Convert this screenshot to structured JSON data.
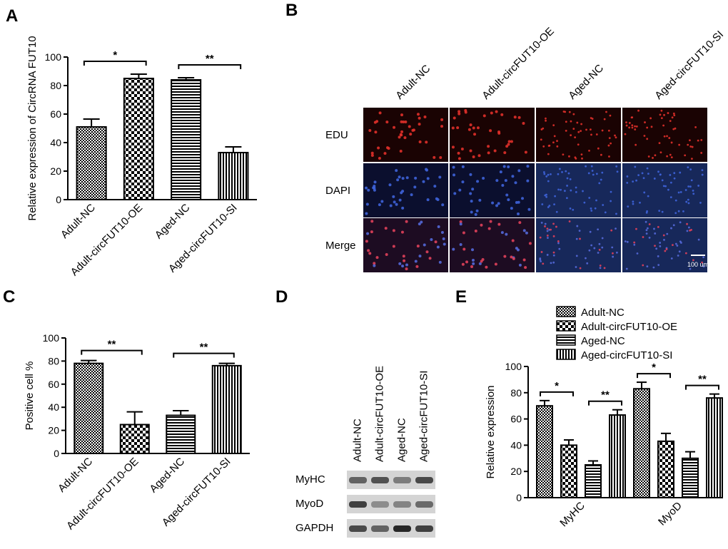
{
  "panels": {
    "a": "A",
    "b": "B",
    "c": "C",
    "d": "D",
    "e": "E"
  },
  "chart_data": [
    {
      "panel": "A",
      "type": "bar",
      "ylabel": "Relative expression of CircRNA FUT10",
      "ylim": [
        0,
        100
      ],
      "yticks": [
        "0",
        "20",
        "40",
        "60",
        "80",
        "100"
      ],
      "categories": [
        "Adult-NC",
        "Adult-circFUT10-OE",
        "Aged-NC",
        "Aged-circFUT10-SI"
      ],
      "values": [
        51,
        85,
        84,
        33
      ],
      "errors": [
        5.5,
        3,
        1.5,
        4
      ],
      "patterns": [
        "fine-check",
        "check",
        "hstripe",
        "vstripe"
      ],
      "significance": [
        {
          "from": 0,
          "to": 1,
          "label": "*"
        },
        {
          "from": 2,
          "to": 3,
          "label": "**"
        }
      ]
    },
    {
      "panel": "C",
      "type": "bar",
      "ylabel": "Positive cell %",
      "ylim": [
        0,
        100
      ],
      "yticks": [
        "0",
        "20",
        "40",
        "60",
        "80",
        "100"
      ],
      "categories": [
        "Adult-NC",
        "Adult-circFUT10-OE",
        "Aged-NC",
        "Aged-circFUT10-SI"
      ],
      "values": [
        78,
        25,
        33,
        76
      ],
      "errors": [
        2.5,
        11,
        4,
        2
      ],
      "patterns": [
        "fine-check",
        "check",
        "hstripe",
        "vstripe"
      ],
      "significance": [
        {
          "from": 0,
          "to": 1,
          "label": "**"
        },
        {
          "from": 2,
          "to": 3,
          "label": "**"
        }
      ]
    },
    {
      "panel": "E",
      "type": "bar",
      "ylabel": "Relative expression",
      "ylim": [
        0,
        100
      ],
      "yticks": [
        "0",
        "20",
        "40",
        "60",
        "80",
        "100"
      ],
      "categories": [
        "MyHC",
        "MyoD"
      ],
      "series": [
        {
          "name": "Adult-NC",
          "values": [
            70,
            83
          ],
          "errors": [
            4,
            5
          ],
          "pattern": "fine-check"
        },
        {
          "name": "Adult-circFUT10-OE",
          "values": [
            40,
            43
          ],
          "errors": [
            4,
            6
          ],
          "pattern": "check"
        },
        {
          "name": "Aged-NC",
          "values": [
            25,
            30
          ],
          "errors": [
            3,
            5
          ],
          "pattern": "hstripe"
        },
        {
          "name": "Aged-circFUT10-SI",
          "values": [
            63,
            76
          ],
          "errors": [
            4,
            3
          ],
          "pattern": "vstripe"
        }
      ],
      "significance": [
        {
          "category": 0,
          "from": 0,
          "to": 1,
          "label": "*"
        },
        {
          "category": 0,
          "from": 2,
          "to": 3,
          "label": "**"
        },
        {
          "category": 1,
          "from": 0,
          "to": 1,
          "label": "*"
        },
        {
          "category": 1,
          "from": 2,
          "to": 3,
          "label": "**"
        }
      ]
    }
  ],
  "microscopy": {
    "columns": [
      "Adult-NC",
      "Adult-circFUT10-OE",
      "Aged-NC",
      "Aged-circFUT10-SI"
    ],
    "rows": [
      "EDU",
      "DAPI",
      "Merge"
    ],
    "scale_bar": "100 um",
    "colors": {
      "edu_bg": "#1a0303",
      "edu_dot": "#e0302a",
      "dapi_bg_adult": "#0b0f2e",
      "dapi_bg_aged": "#17285a",
      "dapi_dot": "#3e63d9"
    }
  },
  "western_blot": {
    "lanes": [
      "Adult-NC",
      "Adult-circFUT10-OE",
      "Aged-NC",
      "Aged-circFUT10-SI"
    ],
    "proteins": [
      "MyHC",
      "MyoD",
      "GAPDH"
    ],
    "intensity": [
      [
        0.6,
        0.7,
        0.45,
        0.75
      ],
      [
        0.8,
        0.35,
        0.4,
        0.55
      ],
      [
        0.75,
        0.6,
        0.95,
        0.8
      ]
    ]
  }
}
